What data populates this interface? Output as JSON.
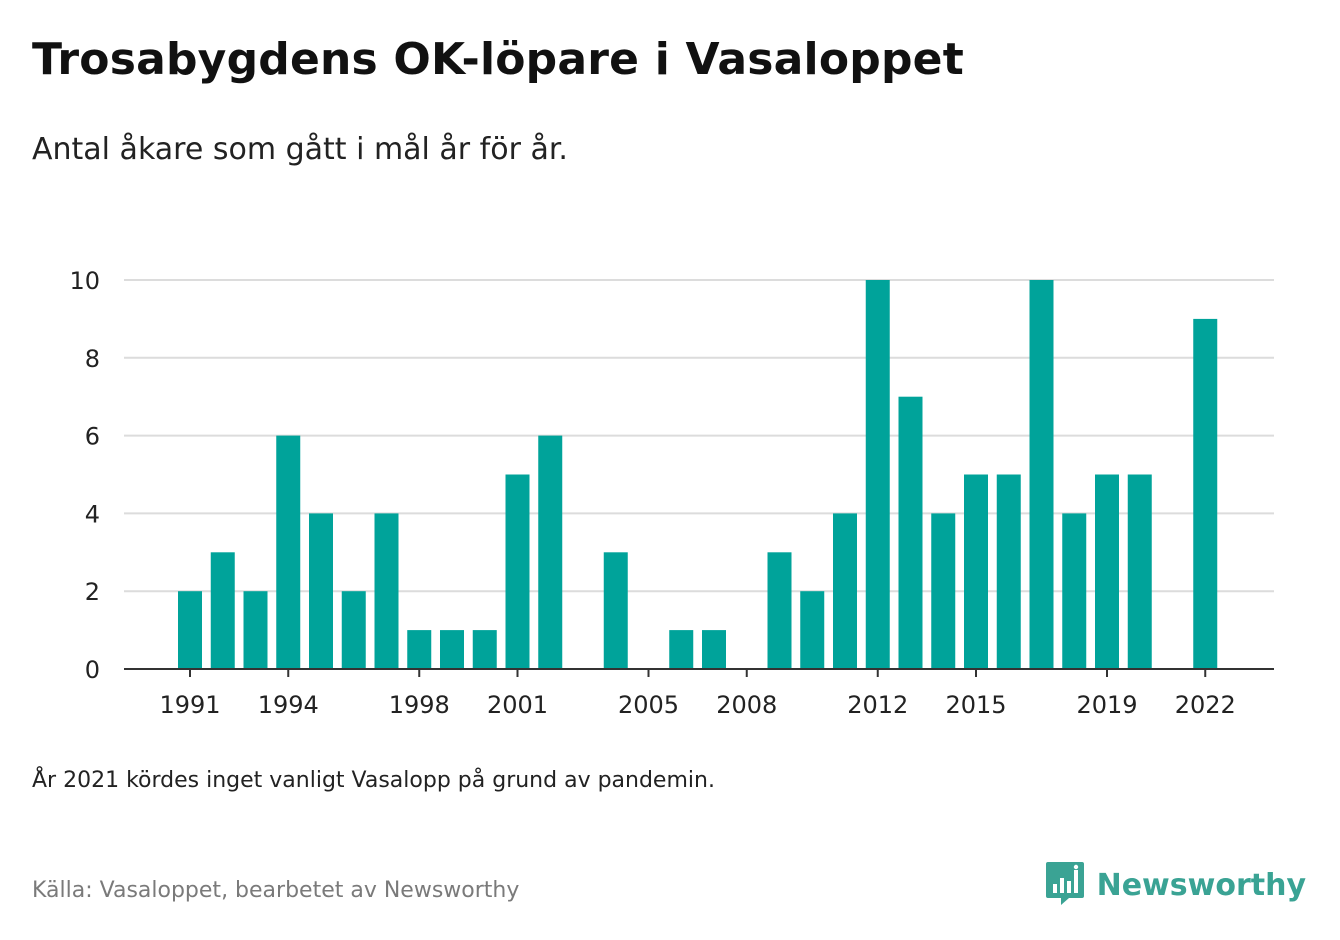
{
  "header": {
    "title": "Trosabygdens OK-löpare i Vasaloppet",
    "subtitle": "Antal åkare som gått i mål år för år."
  },
  "chart_data": {
    "type": "bar",
    "title": "Trosabygdens OK-löpare i Vasaloppet",
    "subtitle": "Antal åkare som gått i mål år för år.",
    "xlabel": "",
    "ylabel": "",
    "categories": [
      1991,
      1992,
      1993,
      1994,
      1995,
      1996,
      1997,
      1998,
      1999,
      2000,
      2001,
      2002,
      2003,
      2004,
      2005,
      2006,
      2007,
      2008,
      2009,
      2010,
      2011,
      2012,
      2013,
      2014,
      2015,
      2016,
      2017,
      2018,
      2019,
      2020,
      2021,
      2022
    ],
    "values": [
      2,
      3,
      2,
      6,
      4,
      2,
      4,
      1,
      1,
      1,
      5,
      6,
      0,
      3,
      0,
      1,
      1,
      0,
      3,
      2,
      4,
      10,
      7,
      4,
      5,
      5,
      10,
      4,
      5,
      5,
      0,
      9
    ],
    "x_tick_labels": [
      "1991",
      "1994",
      "1998",
      "2001",
      "2005",
      "2008",
      "2012",
      "2015",
      "2019",
      "2022"
    ],
    "y_ticks": [
      0,
      2,
      4,
      6,
      8,
      10
    ],
    "ylim": [
      0,
      10
    ],
    "grid": "horizontal",
    "bar_color": "#00a39a"
  },
  "footer": {
    "note": "År 2021 kördes inget vanligt Vasalopp på grund av pandemin.",
    "source": "Källa: Vasaloppet, bearbetet av Newsworthy",
    "brand": "Newsworthy",
    "brand_icon": "bar-chart-speech-bubble-icon",
    "brand_color": "#3aa394"
  }
}
